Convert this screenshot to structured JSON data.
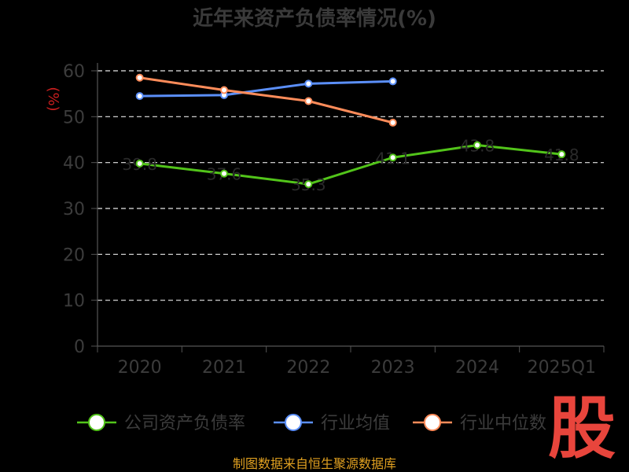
{
  "chart_data": {
    "type": "line",
    "title": "近年来资产负债率情况(%)",
    "ylabel": "(%)",
    "categories": [
      "2020",
      "2021",
      "2022",
      "2023",
      "2024",
      "2025Q1"
    ],
    "ylim": [
      0,
      60
    ],
    "yticks": [
      0,
      10,
      20,
      30,
      40,
      50,
      60
    ],
    "grid": true,
    "legend_position": "bottom",
    "series": [
      {
        "name": "公司资产负债率",
        "color": "#52c41a",
        "values": [
          39.8,
          37.6,
          35.3,
          41.1,
          43.8,
          41.8
        ],
        "labels": [
          "39.8",
          "37.6",
          "35.3",
          "41.1",
          "43.8",
          "41.8"
        ]
      },
      {
        "name": "行业均值",
        "color": "#5b8ff9",
        "values": [
          54.5,
          54.7,
          57.2,
          57.7,
          null,
          null
        ]
      },
      {
        "name": "行业中位数",
        "color": "#ff8c5a",
        "values": [
          58.5,
          55.8,
          53.4,
          48.7,
          null,
          null
        ]
      }
    ]
  },
  "footer": {
    "source": "制图数据来自恒生聚源数据库"
  },
  "watermark": {
    "text": "股",
    "color": "#e8453c"
  }
}
